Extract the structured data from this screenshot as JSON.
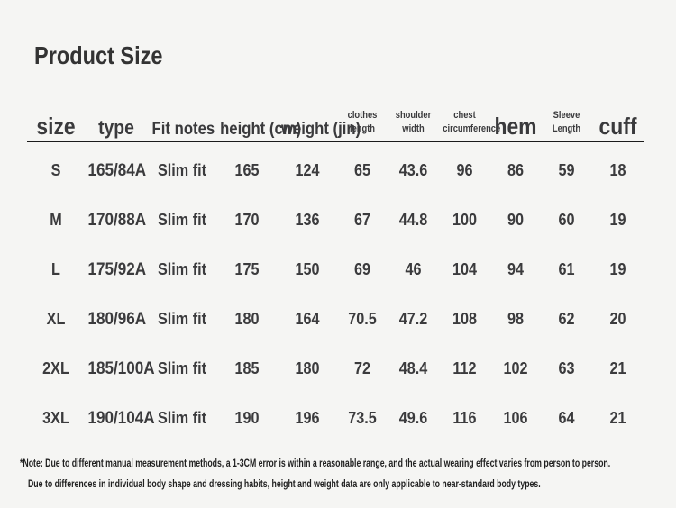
{
  "page": {
    "background_color": "#f5f5f3",
    "text_color": "#3a3a3c",
    "rule_color": "#1b1b1b"
  },
  "chart_data": {
    "type": "table",
    "title": "Product Size",
    "columns": [
      "size",
      "type",
      "Fit notes",
      "height (cm)",
      "weight (jin)",
      "clothes length",
      "shoulder width",
      "chest circumference",
      "hem",
      "Sleeve Length",
      "cuff"
    ],
    "columns_display": [
      "size",
      "type",
      "Fit notes",
      "height (cm)",
      "weight (jin)",
      "clothes\nlength",
      "shoulder\nwidth",
      "chest\ncircumference",
      "hem",
      "Sleeve\nLength",
      "cuff"
    ],
    "rows": [
      [
        "S",
        "165/84A",
        "Slim fit",
        "165",
        "124",
        "65",
        "43.6",
        "96",
        "86",
        "59",
        "18"
      ],
      [
        "M",
        "170/88A",
        "Slim fit",
        "170",
        "136",
        "67",
        "44.8",
        "100",
        "90",
        "60",
        "19"
      ],
      [
        "L",
        "175/92A",
        "Slim fit",
        "175",
        "150",
        "69",
        "46",
        "104",
        "94",
        "61",
        "19"
      ],
      [
        "XL",
        "180/96A",
        "Slim fit",
        "180",
        "164",
        "70.5",
        "47.2",
        "108",
        "98",
        "62",
        "20"
      ],
      [
        "2XL",
        "185/100A",
        "Slim fit",
        "185",
        "180",
        "72",
        "48.4",
        "112",
        "102",
        "63",
        "21"
      ],
      [
        "3XL",
        "190/104A",
        "Slim fit",
        "190",
        "196",
        "73.5",
        "49.6",
        "116",
        "106",
        "64",
        "21"
      ]
    ],
    "footnotes": [
      "*Note: Due to different manual measurement methods, a 1-3CM error is within a reasonable range, and the actual wearing effect varies from person to person.",
      "Due to differences in individual body shape and dressing habits, height and weight data are only applicable to near-standard body types."
    ]
  }
}
